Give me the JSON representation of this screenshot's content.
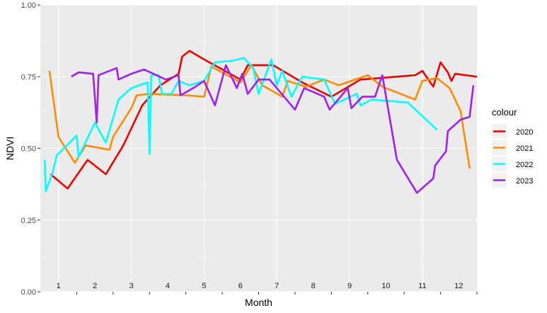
{
  "chart_data": {
    "type": "line",
    "xlabel": "Month",
    "ylabel": "NDVI",
    "ylim": [
      0,
      1
    ],
    "xlim": [
      0.5,
      12.5
    ],
    "y_ticks": [
      0.0,
      0.25,
      0.5,
      0.75,
      1.0
    ],
    "y_tick_labels": [
      "0.00",
      "0.25",
      "0.50",
      "0.75",
      "1.00"
    ],
    "month_labels": [
      "1",
      "2",
      "3",
      "4",
      "5",
      "6",
      "7",
      "8",
      "9",
      "10",
      "11",
      "12"
    ],
    "grid": true,
    "legend_title": "colour",
    "legend_position": "right",
    "series": [
      {
        "name": "2020",
        "color": "#EE0000",
        "points": [
          [
            0.78,
            0.41
          ],
          [
            1.25,
            0.36
          ],
          [
            1.8,
            0.46
          ],
          [
            2.3,
            0.41
          ],
          [
            2.78,
            0.51
          ],
          [
            3.3,
            0.65
          ],
          [
            3.8,
            0.72
          ],
          [
            4.3,
            0.76
          ],
          [
            4.4,
            0.82
          ],
          [
            4.6,
            0.84
          ],
          [
            5.0,
            0.81
          ],
          [
            6.0,
            0.74
          ],
          [
            6.2,
            0.79
          ],
          [
            6.9,
            0.79
          ],
          [
            7.7,
            0.73
          ],
          [
            8.5,
            0.68
          ],
          [
            9.3,
            0.74
          ],
          [
            9.8,
            0.745
          ],
          [
            10.8,
            0.755
          ],
          [
            11.0,
            0.77
          ],
          [
            11.3,
            0.715
          ],
          [
            11.5,
            0.8
          ],
          [
            11.7,
            0.765
          ],
          [
            11.8,
            0.735
          ],
          [
            11.9,
            0.76
          ],
          [
            12.5,
            0.75
          ]
        ]
      },
      {
        "name": "2021",
        "color": "#FF8C00",
        "points": [
          [
            0.75,
            0.77
          ],
          [
            1.0,
            0.54
          ],
          [
            1.45,
            0.45
          ],
          [
            1.75,
            0.51
          ],
          [
            2.4,
            0.495
          ],
          [
            2.5,
            0.54
          ],
          [
            3.0,
            0.64
          ],
          [
            3.15,
            0.685
          ],
          [
            3.5,
            0.69
          ],
          [
            4.5,
            0.685
          ],
          [
            5.0,
            0.68
          ],
          [
            5.2,
            0.785
          ],
          [
            6.0,
            0.73
          ],
          [
            6.3,
            0.79
          ],
          [
            6.6,
            0.72
          ],
          [
            7.15,
            0.68
          ],
          [
            7.3,
            0.735
          ],
          [
            7.8,
            0.715
          ],
          [
            8.3,
            0.74
          ],
          [
            8.7,
            0.72
          ],
          [
            9.5,
            0.755
          ],
          [
            9.9,
            0.715
          ],
          [
            10.8,
            0.67
          ],
          [
            11.0,
            0.735
          ],
          [
            11.4,
            0.745
          ],
          [
            11.75,
            0.71
          ],
          [
            12.05,
            0.63
          ],
          [
            12.3,
            0.43
          ]
        ]
      },
      {
        "name": "2022",
        "color": "#00FFFF",
        "points": [
          [
            0.62,
            0.46
          ],
          [
            0.65,
            0.35
          ],
          [
            0.85,
            0.42
          ],
          [
            0.95,
            0.475
          ],
          [
            1.5,
            0.545
          ],
          [
            1.55,
            0.47
          ],
          [
            2.0,
            0.59
          ],
          [
            2.3,
            0.52
          ],
          [
            2.65,
            0.67
          ],
          [
            3.0,
            0.71
          ],
          [
            3.45,
            0.73
          ],
          [
            3.5,
            0.48
          ],
          [
            3.55,
            0.755
          ],
          [
            3.75,
            0.755
          ],
          [
            3.85,
            0.69
          ],
          [
            4.1,
            0.69
          ],
          [
            4.3,
            0.735
          ],
          [
            4.6,
            0.72
          ],
          [
            5.0,
            0.735
          ],
          [
            5.3,
            0.8
          ],
          [
            5.75,
            0.805
          ],
          [
            6.1,
            0.815
          ],
          [
            6.35,
            0.78
          ],
          [
            6.5,
            0.69
          ],
          [
            6.85,
            0.81
          ],
          [
            7.0,
            0.72
          ],
          [
            7.15,
            0.77
          ],
          [
            7.4,
            0.68
          ],
          [
            7.7,
            0.75
          ],
          [
            8.3,
            0.74
          ],
          [
            8.6,
            0.655
          ],
          [
            9.2,
            0.69
          ],
          [
            9.3,
            0.65
          ],
          [
            9.6,
            0.67
          ],
          [
            10.6,
            0.66
          ],
          [
            11.4,
            0.565
          ]
        ]
      },
      {
        "name": "2023",
        "color": "#A020F0",
        "points": [
          [
            1.35,
            0.75
          ],
          [
            1.55,
            0.765
          ],
          [
            1.95,
            0.76
          ],
          [
            2.05,
            0.59
          ],
          [
            2.1,
            0.755
          ],
          [
            2.6,
            0.78
          ],
          [
            2.65,
            0.74
          ],
          [
            3.0,
            0.76
          ],
          [
            3.35,
            0.775
          ],
          [
            3.95,
            0.74
          ],
          [
            4.3,
            0.755
          ],
          [
            4.35,
            0.685
          ],
          [
            4.7,
            0.71
          ],
          [
            5.0,
            0.735
          ],
          [
            5.3,
            0.65
          ],
          [
            5.6,
            0.79
          ],
          [
            5.9,
            0.71
          ],
          [
            6.05,
            0.76
          ],
          [
            6.2,
            0.69
          ],
          [
            6.5,
            0.74
          ],
          [
            6.8,
            0.74
          ],
          [
            7.5,
            0.635
          ],
          [
            7.75,
            0.71
          ],
          [
            8.3,
            0.68
          ],
          [
            8.45,
            0.635
          ],
          [
            8.95,
            0.71
          ],
          [
            9.05,
            0.64
          ],
          [
            9.35,
            0.68
          ],
          [
            9.7,
            0.68
          ],
          [
            9.9,
            0.755
          ],
          [
            10.3,
            0.46
          ],
          [
            10.85,
            0.345
          ],
          [
            11.3,
            0.395
          ],
          [
            11.35,
            0.44
          ],
          [
            11.65,
            0.49
          ],
          [
            11.7,
            0.56
          ],
          [
            12.05,
            0.6
          ],
          [
            12.3,
            0.61
          ],
          [
            12.4,
            0.72
          ]
        ]
      }
    ]
  }
}
